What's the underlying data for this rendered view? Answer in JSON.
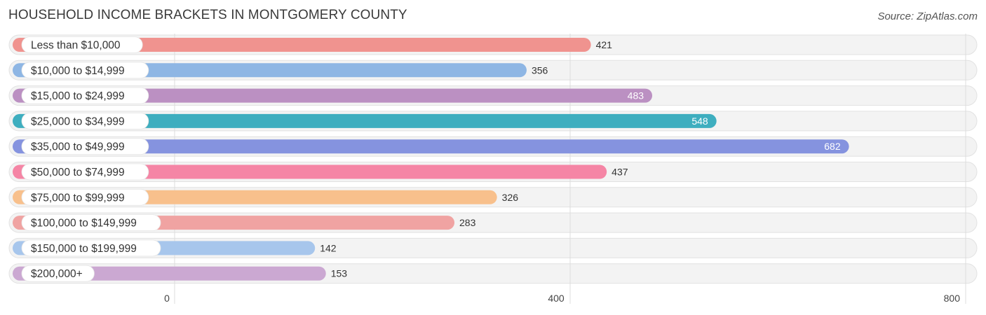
{
  "title": "HOUSEHOLD INCOME BRACKETS IN MONTGOMERY COUNTY",
  "source": "Source: ZipAtlas.com",
  "chart_data": {
    "type": "bar",
    "orientation": "horizontal",
    "title": "HOUSEHOLD INCOME BRACKETS IN MONTGOMERY COUNTY",
    "categories": [
      "Less than $10,000",
      "$10,000 to $14,999",
      "$15,000 to $24,999",
      "$25,000 to $34,999",
      "$35,000 to $49,999",
      "$50,000 to $74,999",
      "$75,000 to $99,999",
      "$100,000 to $149,999",
      "$150,000 to $199,999",
      "$200,000+"
    ],
    "values": [
      421,
      356,
      483,
      548,
      682,
      437,
      326,
      283,
      142,
      153
    ],
    "colors": [
      "#f0938f",
      "#8eb6e4",
      "#bb90c2",
      "#3eaebf",
      "#8593df",
      "#f585a5",
      "#f8c08c",
      "#f0a3a2",
      "#a7c6ec",
      "#cba8d2"
    ],
    "value_label_inside": [
      false,
      false,
      true,
      true,
      true,
      false,
      false,
      false,
      false,
      false
    ],
    "xlim": [
      0,
      800
    ],
    "xticks": [
      0,
      400,
      800
    ],
    "grid": true
  }
}
